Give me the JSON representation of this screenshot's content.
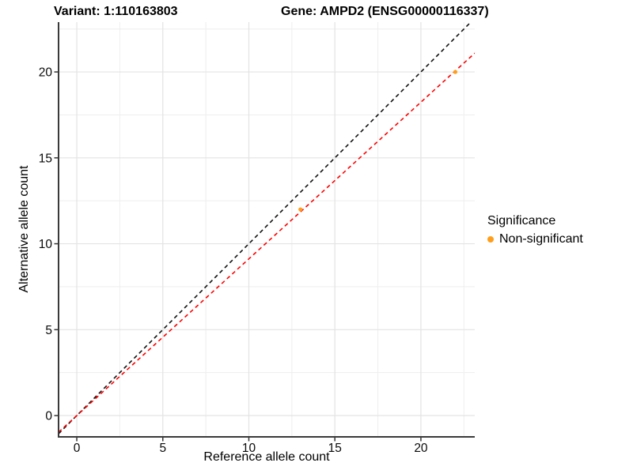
{
  "figure": {
    "background": "#ffffff"
  },
  "chart_data": {
    "type": "scatter",
    "titles": {
      "left": "Variant: 1:110163803",
      "right": "Gene: AMPD2 (ENSG00000116337)"
    },
    "xlabel": "Reference allele count",
    "ylabel": "Alternative allele count",
    "xlim": [
      -1.06,
      23.13
    ],
    "ylim": [
      -1.24,
      22.9
    ],
    "x_major_ticks": [
      0,
      5,
      10,
      15,
      20
    ],
    "y_major_ticks": [
      0,
      5,
      10,
      15,
      20
    ],
    "x_minor_ticks": [
      2.5,
      7.5,
      12.5,
      17.5,
      22.5
    ],
    "y_minor_ticks": [
      2.5,
      7.5,
      12.5,
      17.5,
      22.5
    ],
    "grid": true,
    "points": [
      {
        "x": 13,
        "y": 12,
        "series": "Non-significant"
      },
      {
        "x": 22,
        "y": 20,
        "series": "Non-significant"
      }
    ],
    "lines": [
      {
        "name": "identity-line",
        "slope": 1,
        "intercept": 0,
        "color": "#111111",
        "style": "dashed"
      },
      {
        "name": "fit-line",
        "slope": 0.912,
        "intercept": 0,
        "color": "#ff0000",
        "style": "dashed"
      }
    ],
    "legend": {
      "title": "Significance",
      "position": "right",
      "items": [
        {
          "label": "Non-significant",
          "color": "#ff9e1b"
        }
      ]
    },
    "colors": {
      "point": "#ff9e1b",
      "grid_major": "#e3e3e3",
      "grid_minor": "#eeeeee",
      "axis_line": "#3a3a3a",
      "tick": "#333333",
      "tick_label": "#1a1a1a"
    }
  }
}
